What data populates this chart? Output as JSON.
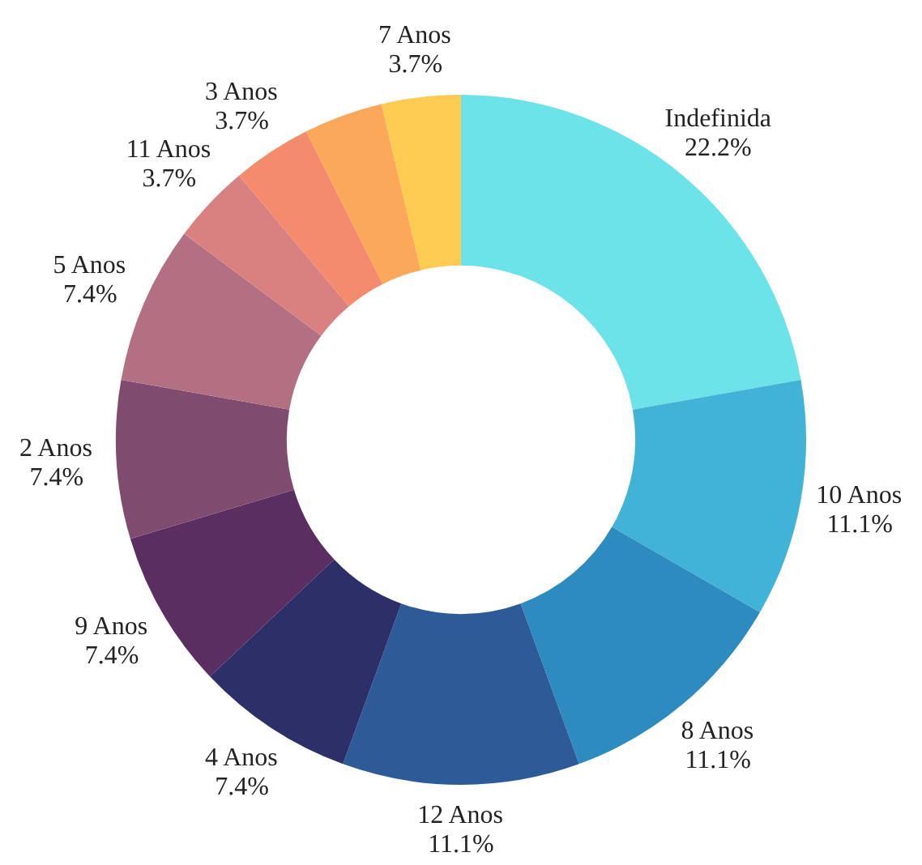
{
  "chart_data": {
    "type": "donut",
    "categories": [
      "Indefinida",
      "10 Anos",
      "8 Anos",
      "12 Anos",
      "4 Anos",
      "9 Anos",
      "2 Anos",
      "5 Anos",
      "11 Anos",
      "3 Anos",
      null,
      "7 Anos"
    ],
    "values": [
      22.2,
      11.1,
      11.1,
      11.1,
      7.4,
      7.4,
      7.4,
      7.4,
      3.7,
      3.7,
      3.7,
      3.7
    ],
    "value_labels": [
      "22.2%",
      "11.1%",
      "11.1%",
      "11.1%",
      "7.4%",
      "7.4%",
      "7.4%",
      "7.4%",
      "3.7%",
      "3.7%",
      null,
      "3.7%"
    ],
    "colors": [
      "#6ce3e9",
      "#41b3d6",
      "#2e8bbf",
      "#2c5b98",
      "#2d2f69",
      "#5b2e62",
      "#7f4b6f",
      "#b47083",
      "#d98180",
      "#f58b6d",
      "#fca85a",
      "#fdcb52"
    ]
  }
}
